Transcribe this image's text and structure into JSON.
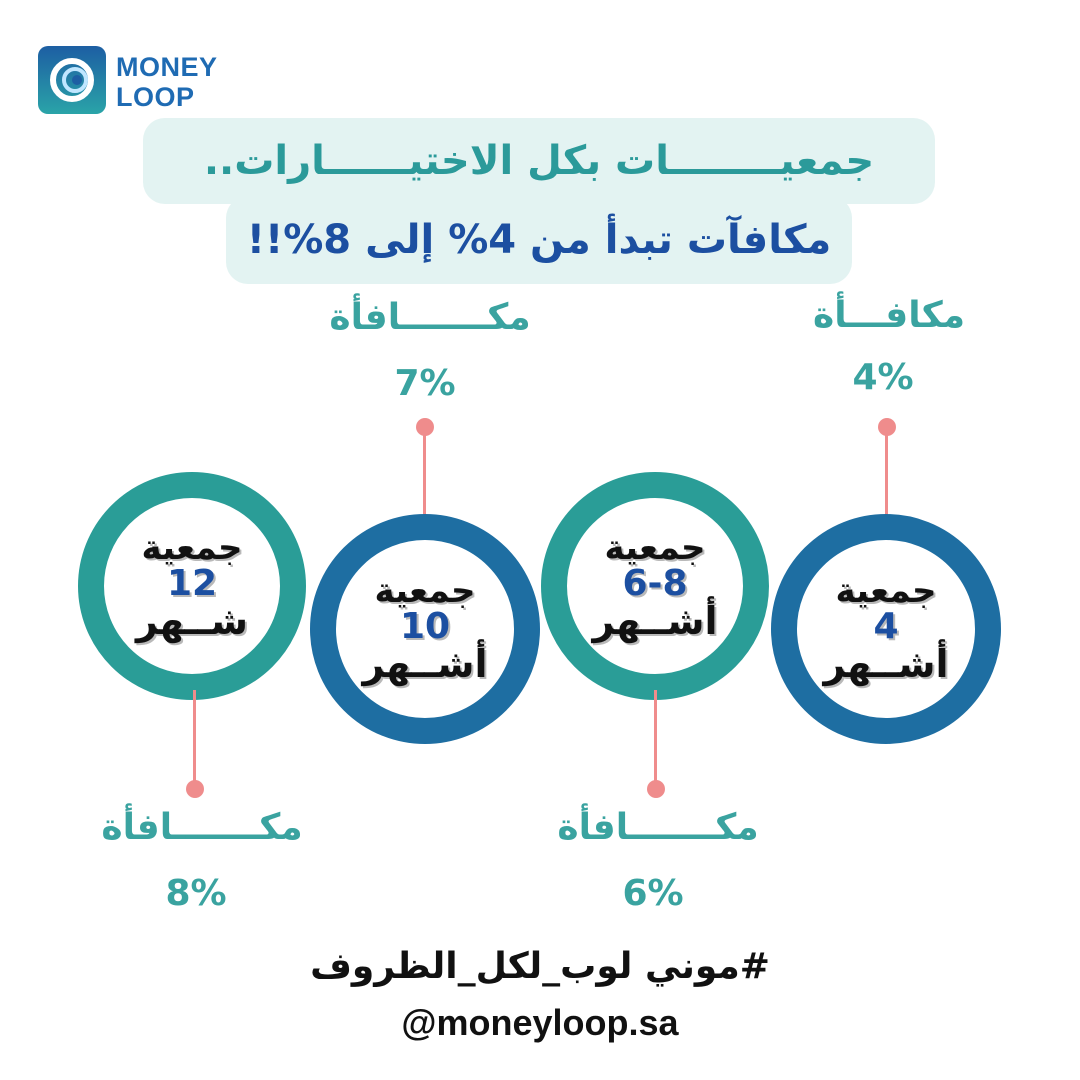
{
  "brand": {
    "logo_line1": "MONEY",
    "logo_line2": "LOOP",
    "logo_icon": "money-loop-logo-icon"
  },
  "headline": {
    "line1": "جمعيــــــــات بكل الاختيــــــارات..",
    "line2": "مكافآت تبدأ من 4% إلى 8%!!"
  },
  "circles": [
    {
      "title": "جمعية",
      "number": "4",
      "unit": "أشــهر",
      "reward_label": "مكافـــأة",
      "reward_value": "4%"
    },
    {
      "title": "جمعية",
      "number": "6-8",
      "unit": "أشــهر",
      "reward_label": "مكـــــــافأة",
      "reward_value": "6%"
    },
    {
      "title": "جمعية",
      "number": "10",
      "unit": "أشــهر",
      "reward_label": "مكـــــــافأة",
      "reward_value": "7%"
    },
    {
      "title": "جمعية",
      "number": "12",
      "unit": "شــهر",
      "reward_label": "مكـــــــافأة",
      "reward_value": "8%"
    }
  ],
  "footer": {
    "hashtag": "#موني لوب_لكل_الظروف",
    "handle": "@moneyloop.sa"
  },
  "colors": {
    "teal": "#2a9d97",
    "blue": "#1e6ea2",
    "navy_text": "#1c4fa1",
    "connector_pink": "#ef8c8c",
    "headline_bg": "#e3f3f2"
  }
}
